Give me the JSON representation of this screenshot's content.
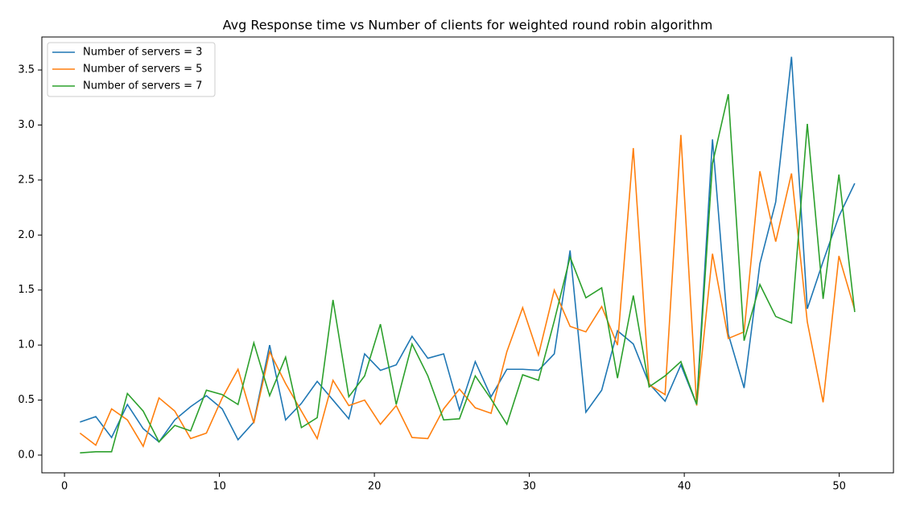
{
  "chart_data": {
    "type": "line",
    "title": "Avg Response time vs Number of clients for weighted round robin algorithm",
    "x": [
      1,
      2.02,
      3.04,
      4.06,
      5.08,
      6.1,
      7.12,
      8.14,
      9.16,
      10.18,
      11.2,
      12.22,
      13.24,
      14.27,
      15.29,
      16.31,
      17.33,
      18.35,
      19.37,
      20.39,
      21.41,
      22.43,
      23.45,
      24.47,
      25.49,
      26.51,
      27.53,
      28.55,
      29.57,
      30.59,
      31.61,
      32.63,
      33.65,
      34.67,
      35.69,
      36.71,
      37.73,
      38.76,
      39.78,
      40.8,
      41.82,
      42.84,
      43.86,
      44.88,
      45.9,
      46.92,
      47.94,
      48.96,
      49.98,
      51
    ],
    "series": [
      {
        "name": "Number of servers = 3",
        "color": "#1f77b4",
        "values": [
          0.3,
          0.35,
          0.16,
          0.46,
          0.24,
          0.12,
          0.32,
          0.44,
          0.54,
          0.42,
          0.14,
          0.3,
          1.0,
          0.32,
          0.47,
          0.67,
          0.5,
          0.33,
          0.92,
          0.77,
          0.82,
          1.08,
          0.88,
          0.92,
          0.41,
          0.85,
          0.53,
          0.78,
          0.78,
          0.77,
          0.92,
          1.86,
          0.39,
          0.59,
          1.13,
          1.01,
          0.65,
          0.49,
          0.82,
          0.46,
          2.87,
          1.1,
          0.61,
          1.74,
          2.3,
          3.62,
          1.33,
          1.76,
          2.17,
          2.47
        ]
      },
      {
        "name": "Number of servers = 5",
        "color": "#ff7f0e",
        "values": [
          0.2,
          0.09,
          0.42,
          0.32,
          0.08,
          0.52,
          0.4,
          0.15,
          0.2,
          0.52,
          0.78,
          0.29,
          0.94,
          0.65,
          0.4,
          0.15,
          0.68,
          0.45,
          0.5,
          0.28,
          0.45,
          0.16,
          0.15,
          0.42,
          0.6,
          0.43,
          0.38,
          0.94,
          1.34,
          0.91,
          1.5,
          1.17,
          1.12,
          1.35,
          1.0,
          2.79,
          0.64,
          0.55,
          2.91,
          0.45,
          1.83,
          1.06,
          1.12,
          2.58,
          1.94,
          2.56,
          1.21,
          0.48,
          1.81,
          1.32
        ]
      },
      {
        "name": "Number of servers = 7",
        "color": "#2ca02c",
        "values": [
          0.02,
          0.03,
          0.03,
          0.56,
          0.4,
          0.12,
          0.27,
          0.22,
          0.59,
          0.55,
          0.46,
          1.02,
          0.54,
          0.89,
          0.25,
          0.34,
          1.41,
          0.53,
          0.72,
          1.19,
          0.46,
          1.01,
          0.72,
          0.32,
          0.33,
          0.72,
          0.51,
          0.28,
          0.73,
          0.68,
          1.22,
          1.8,
          1.43,
          1.52,
          0.7,
          1.45,
          0.62,
          0.72,
          0.85,
          0.46,
          2.65,
          3.28,
          1.04,
          1.55,
          1.26,
          1.2,
          3.01,
          1.42,
          2.55,
          1.3
        ]
      }
    ],
    "xlim": [
      -1.46,
      53.5
    ],
    "ylim": [
      -0.161,
      3.8
    ],
    "xticks": [
      0,
      10,
      20,
      30,
      40,
      50
    ],
    "yticks": [
      {
        "value": 0,
        "label": "0.0"
      },
      0.5,
      {
        "value": 1,
        "label": "1.0"
      },
      1.5,
      {
        "value": 2,
        "label": "2.0"
      },
      2.5,
      {
        "value": 3,
        "label": "3.0"
      },
      3.5
    ],
    "grid": false,
    "legend": "upper left"
  }
}
